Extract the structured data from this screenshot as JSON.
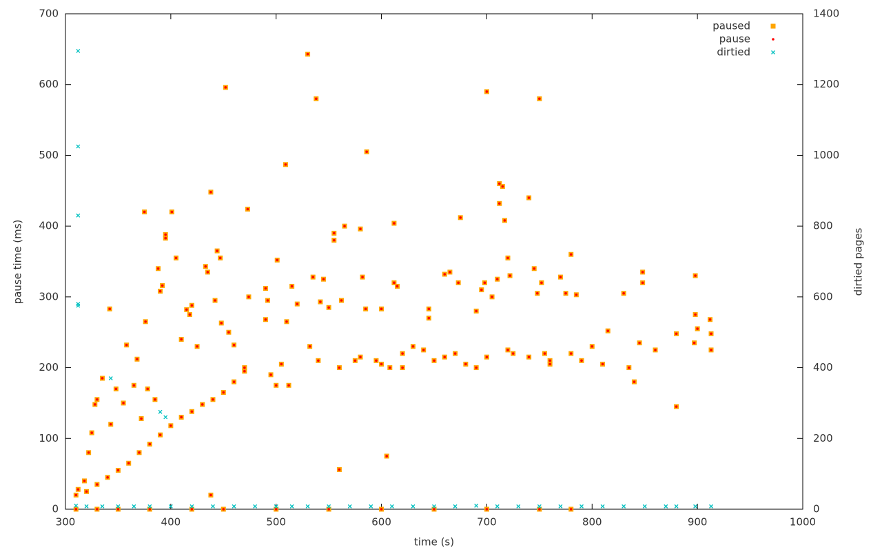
{
  "chart_data": {
    "type": "scatter",
    "xlabel": "time (s)",
    "ylabel": "pause time (ms)",
    "y2label": "dirtied pages",
    "xlim": [
      300,
      1000
    ],
    "xticks": [
      300,
      400,
      500,
      600,
      700,
      800,
      900,
      1000
    ],
    "ylim": [
      0,
      700
    ],
    "yticks": [
      0,
      100,
      200,
      300,
      400,
      500,
      600,
      700
    ],
    "y2lim": [
      0,
      1400
    ],
    "y2ticks": [
      0,
      200,
      400,
      600,
      800,
      1000,
      1200,
      1400
    ],
    "legend": "top-right",
    "grid": false,
    "series": [
      {
        "name": "paused",
        "color": "#ffa500",
        "marker": "square",
        "x": [
          310,
          312,
          318,
          322,
          325,
          328,
          330,
          335,
          342,
          343,
          348,
          355,
          358,
          365,
          368,
          372,
          375,
          376,
          378,
          385,
          388,
          390,
          392,
          395,
          395,
          401,
          405,
          410,
          415,
          418,
          420,
          425,
          433,
          435,
          438,
          438,
          442,
          444,
          447,
          448,
          452,
          455,
          460,
          470,
          473,
          474,
          490,
          490,
          492,
          495,
          500,
          501,
          505,
          509,
          510,
          512,
          515,
          520,
          530,
          532,
          535,
          538,
          540,
          542,
          545,
          550,
          555,
          555,
          560,
          562,
          565,
          575,
          580,
          582,
          585,
          586,
          595,
          600,
          605,
          608,
          612,
          612,
          615,
          620,
          630,
          645,
          645,
          650,
          660,
          665,
          670,
          673,
          675,
          690,
          690,
          695,
          698,
          700,
          705,
          710,
          712,
          712,
          715,
          717,
          720,
          722,
          725,
          740,
          745,
          748,
          750,
          752,
          755,
          760,
          770,
          775,
          780,
          785,
          790,
          800,
          810,
          815,
          830,
          835,
          840,
          845,
          848,
          848,
          860,
          880,
          880,
          897,
          898,
          898,
          900,
          912,
          913,
          913,
          320,
          330,
          340,
          350,
          360,
          370,
          380,
          390,
          400,
          410,
          420,
          430,
          440,
          450,
          460,
          470,
          310,
          330,
          350,
          380,
          420,
          450,
          500,
          550,
          600,
          650,
          700,
          750,
          780,
          560,
          580,
          600,
          620,
          640,
          660,
          680,
          700,
          720,
          740,
          760,
          780
        ],
        "values": [
          20,
          28,
          40,
          80,
          108,
          148,
          155,
          185,
          283,
          120,
          170,
          150,
          232,
          175,
          212,
          128,
          420,
          265,
          170,
          155,
          340,
          308,
          316,
          388,
          383,
          420,
          355,
          240,
          282,
          275,
          288,
          230,
          343,
          335,
          448,
          20,
          295,
          365,
          355,
          263,
          596,
          250,
          232,
          200,
          424,
          300,
          268,
          312,
          295,
          190,
          175,
          352,
          205,
          487,
          265,
          175,
          315,
          290,
          643,
          230,
          328,
          580,
          210,
          293,
          325,
          285,
          390,
          380,
          56,
          295,
          400,
          210,
          396,
          328,
          283,
          505,
          210,
          283,
          75,
          200,
          404,
          320,
          315,
          220,
          230,
          283,
          270,
          210,
          332,
          335,
          220,
          320,
          412,
          280,
          200,
          310,
          320,
          590,
          300,
          325,
          460,
          432,
          456,
          408,
          355,
          330,
          220,
          440,
          340,
          305,
          580,
          320,
          220,
          210,
          328,
          305,
          360,
          303,
          210,
          230,
          205,
          252,
          305,
          200,
          180,
          235,
          320,
          335,
          225,
          145,
          248,
          235,
          330,
          275,
          255,
          268,
          225,
          248,
          25,
          35,
          45,
          55,
          65,
          80,
          92,
          105,
          118,
          130,
          138,
          148,
          155,
          165,
          180,
          195,
          0,
          0,
          0,
          0,
          0,
          0,
          0,
          0,
          0,
          0,
          0,
          0,
          0,
          200,
          215,
          205,
          200,
          225,
          215,
          205,
          215,
          225,
          215,
          205,
          220
        ]
      },
      {
        "name": "pause",
        "color": "#ff0000",
        "marker": "circle",
        "x": [
          310,
          312,
          318,
          322,
          325,
          328,
          330,
          335,
          342,
          343,
          348,
          355,
          358,
          365,
          368,
          372,
          375,
          376,
          378,
          385,
          388,
          390,
          392,
          395,
          395,
          401,
          405,
          410,
          415,
          418,
          420,
          425,
          433,
          435,
          438,
          438,
          442,
          444,
          447,
          448,
          452,
          455,
          460,
          470,
          473,
          474,
          490,
          490,
          492,
          495,
          500,
          501,
          505,
          509,
          510,
          512,
          515,
          520,
          530,
          532,
          535,
          538,
          540,
          542,
          545,
          550,
          555,
          555,
          560,
          562,
          565,
          575,
          580,
          582,
          585,
          586,
          595,
          600,
          605,
          608,
          612,
          612,
          615,
          620,
          630,
          645,
          645,
          650,
          660,
          665,
          670,
          673,
          675,
          690,
          690,
          695,
          698,
          700,
          705,
          710,
          712,
          712,
          715,
          717,
          720,
          722,
          725,
          740,
          745,
          748,
          750,
          752,
          755,
          760,
          770,
          775,
          780,
          785,
          790,
          800,
          810,
          815,
          830,
          835,
          840,
          845,
          848,
          848,
          860,
          880,
          880,
          897,
          898,
          898,
          900,
          912,
          913,
          913,
          320,
          330,
          340,
          350,
          360,
          370,
          380,
          390,
          400,
          410,
          420,
          430,
          440,
          450,
          460,
          470,
          310,
          330,
          350,
          380,
          420,
          450,
          500,
          550,
          600,
          650,
          700,
          750,
          780,
          560,
          580,
          600,
          620,
          640,
          660,
          680,
          700,
          720,
          740,
          760,
          780
        ],
        "values": [
          20,
          28,
          40,
          80,
          108,
          148,
          155,
          185,
          283,
          120,
          170,
          150,
          232,
          175,
          212,
          128,
          420,
          265,
          170,
          155,
          340,
          308,
          316,
          388,
          383,
          420,
          355,
          240,
          282,
          275,
          288,
          230,
          343,
          335,
          448,
          20,
          295,
          365,
          355,
          263,
          596,
          250,
          232,
          200,
          424,
          300,
          268,
          312,
          295,
          190,
          175,
          352,
          205,
          487,
          265,
          175,
          315,
          290,
          643,
          230,
          328,
          580,
          210,
          293,
          325,
          285,
          390,
          380,
          56,
          295,
          400,
          210,
          396,
          328,
          283,
          505,
          210,
          283,
          75,
          200,
          404,
          320,
          315,
          220,
          230,
          283,
          270,
          210,
          332,
          335,
          220,
          320,
          412,
          280,
          200,
          310,
          320,
          590,
          300,
          325,
          460,
          432,
          456,
          408,
          355,
          330,
          220,
          440,
          340,
          305,
          580,
          320,
          220,
          210,
          328,
          305,
          360,
          303,
          210,
          230,
          205,
          252,
          305,
          200,
          180,
          235,
          320,
          335,
          225,
          145,
          248,
          235,
          330,
          275,
          255,
          268,
          225,
          248,
          25,
          35,
          45,
          55,
          65,
          80,
          92,
          105,
          118,
          130,
          138,
          148,
          155,
          165,
          180,
          195,
          0,
          0,
          0,
          0,
          0,
          0,
          0,
          0,
          0,
          0,
          0,
          0,
          0,
          200,
          215,
          205,
          200,
          225,
          215,
          205,
          215,
          225,
          215,
          205,
          220
        ]
      },
      {
        "name": "dirtied",
        "color": "#00c0c0",
        "marker": "cross",
        "axis": "y2",
        "x": [
          312,
          312,
          312,
          312,
          312,
          343,
          390,
          395,
          310,
          320,
          335,
          350,
          365,
          380,
          400,
          420,
          440,
          460,
          480,
          500,
          515,
          530,
          550,
          570,
          590,
          610,
          630,
          650,
          670,
          690,
          710,
          730,
          750,
          770,
          790,
          810,
          830,
          850,
          870,
          880,
          898,
          913
        ],
        "values": [
          1295,
          1025,
          830,
          575,
          580,
          370,
          275,
          260,
          10,
          8,
          8,
          8,
          8,
          8,
          8,
          8,
          8,
          8,
          8,
          8,
          8,
          8,
          8,
          8,
          8,
          8,
          8,
          8,
          8,
          10,
          8,
          8,
          8,
          8,
          8,
          8,
          8,
          8,
          8,
          8,
          8,
          8
        ]
      }
    ]
  }
}
